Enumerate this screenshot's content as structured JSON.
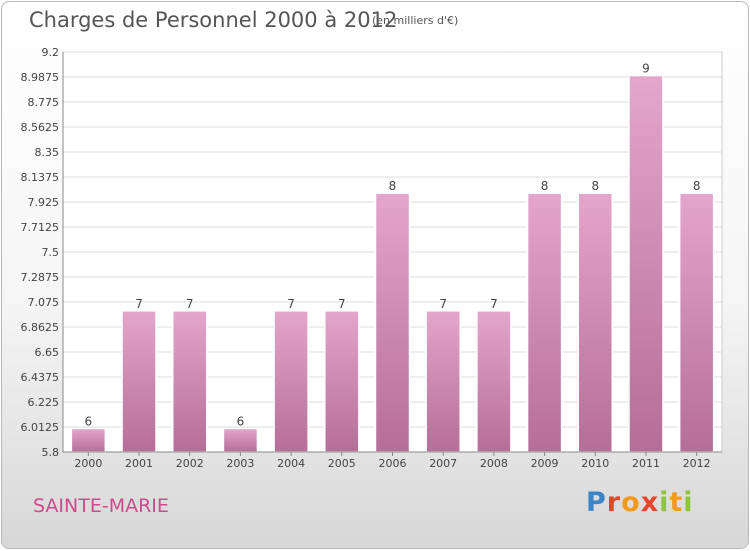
{
  "title": "Charges de Personnel 2000 à 2012",
  "subtitle": "(en milliers d'€)",
  "commune": "SAINTE-MARIE",
  "logo": {
    "letters": [
      "P",
      "r",
      "o",
      "x",
      "i",
      "t",
      "i"
    ]
  },
  "chart_data": {
    "type": "bar",
    "categories": [
      "2000",
      "2001",
      "2002",
      "2003",
      "2004",
      "2005",
      "2006",
      "2007",
      "2008",
      "2009",
      "2010",
      "2011",
      "2012"
    ],
    "values": [
      6,
      7,
      7,
      6,
      7,
      7,
      8,
      7,
      7,
      8,
      8,
      9,
      8
    ],
    "data_labels": [
      "6",
      "7",
      "7",
      "6",
      "7",
      "7",
      "8",
      "7",
      "7",
      "8",
      "8",
      "9",
      "8"
    ],
    "ylim": [
      5.8,
      9.2
    ],
    "yticks": [
      "5.8",
      "6.0125",
      "6.225",
      "6.4375",
      "6.65",
      "6.8625",
      "7.075",
      "7.2875",
      "7.5",
      "7.7125",
      "7.925",
      "8.1375",
      "8.35",
      "8.5625",
      "8.775",
      "8.9875",
      "9.2"
    ],
    "grid": true,
    "colors": {
      "bar_top": "#e4a6cb",
      "bar_bottom": "#b56e97",
      "grid": "#dddddd",
      "plot_bg": "#ffffff"
    }
  }
}
